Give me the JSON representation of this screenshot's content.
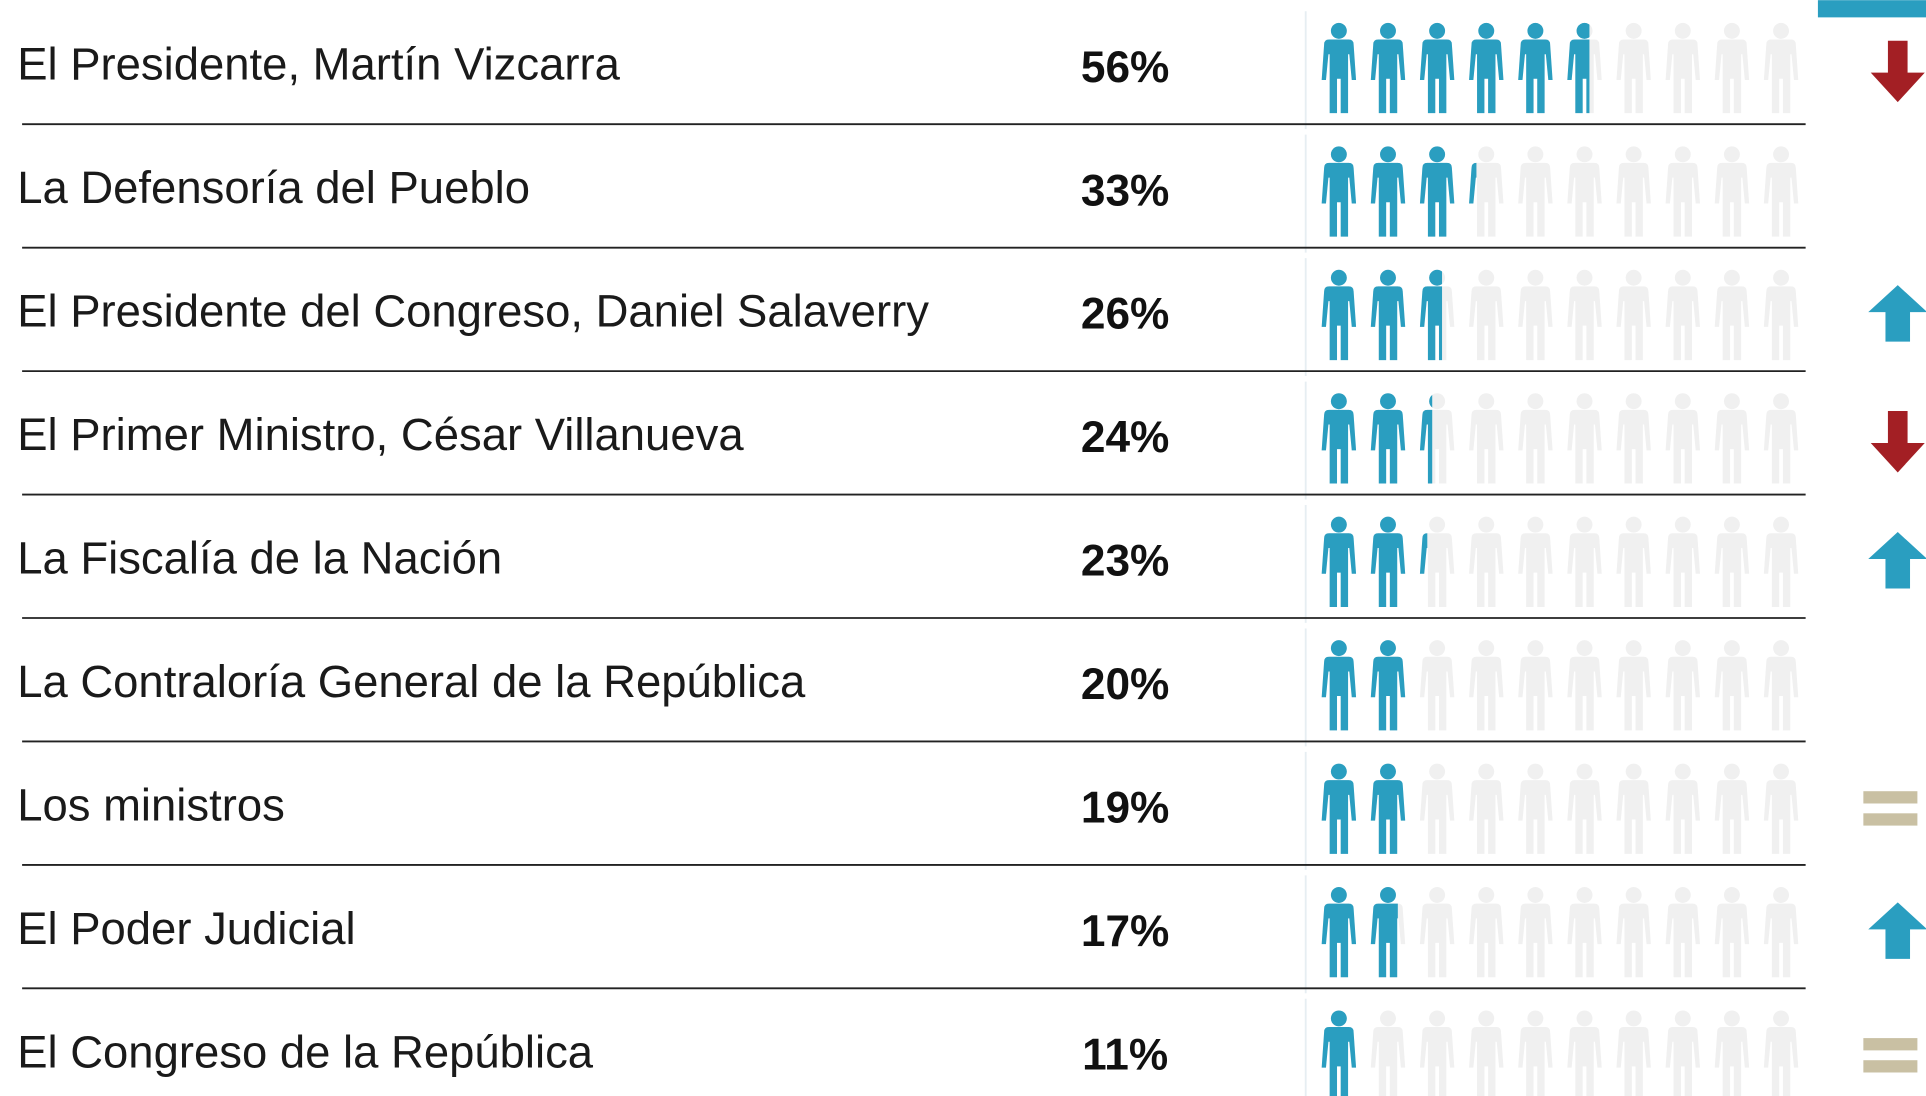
{
  "chart_data": {
    "type": "pictogram",
    "categories": [
      "El Presidente, Martín Vizcarra",
      "La Defensoría del Pueblo",
      "El Presidente del Congreso, Daniel Salaverry",
      "El Primer Ministro, César Villanueva",
      "La Fiscalía de la Nación",
      "La Contraloría General de la República",
      "Los ministros",
      "El Poder Judicial",
      "El Congreso de la República"
    ],
    "values": [
      56,
      33,
      26,
      24,
      23,
      20,
      19,
      17,
      11
    ],
    "value_labels": [
      "56%",
      "33%",
      "26%",
      "24%",
      "23%",
      "20%",
      "19%",
      "17%",
      "11%"
    ],
    "xlim": [
      0,
      100
    ],
    "color": "#2a9ec0",
    "empty_color": "#f0f0f0",
    "trends": [
      "down",
      null,
      "up",
      "down",
      "up",
      null,
      "equal",
      "up",
      "equal"
    ],
    "trend_colors": {
      "down": "#a31f24",
      "up": "#2a9ec0",
      "equal": "#c9c0a3"
    }
  }
}
